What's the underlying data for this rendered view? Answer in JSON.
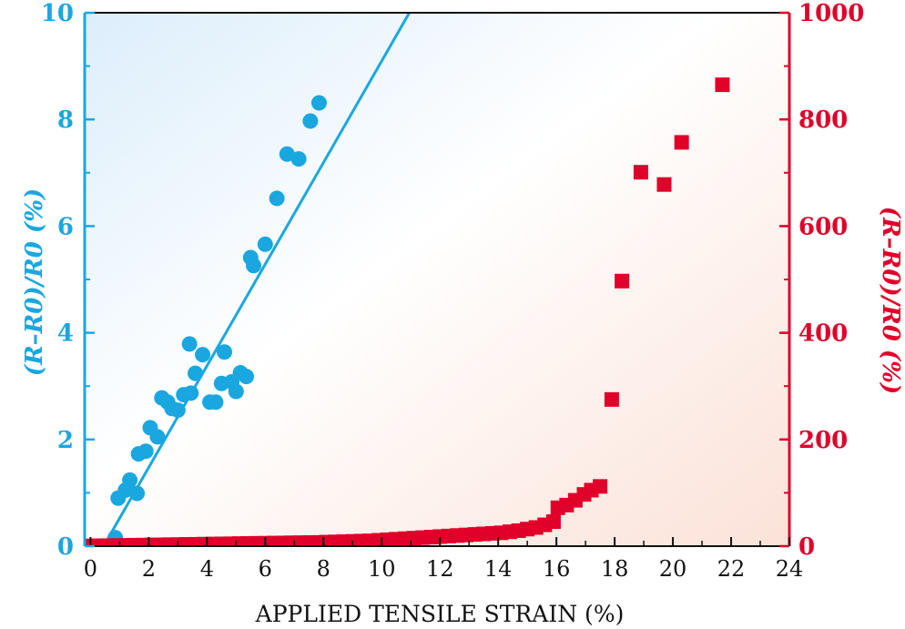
{
  "chart_data": {
    "type": "scatter",
    "title": "",
    "xlabel": "APPLIED TENSILE STRAIN (%)",
    "ylabel_left": "(R–R0)/R0 (%)",
    "ylabel_right": "(R–R0)/R0 (%)",
    "xlim": [
      -0.2,
      24
    ],
    "ylim_left": [
      0,
      10
    ],
    "ylim_right": [
      0,
      1000
    ],
    "x_ticks": [
      "0",
      "2",
      "4",
      "6",
      "8",
      "10",
      "12",
      "14",
      "16",
      "18",
      "20",
      "22",
      "24"
    ],
    "y_left_ticks": [
      "0",
      "2",
      "4",
      "6",
      "8",
      "10"
    ],
    "y_right_ticks": [
      "0",
      "200",
      "400",
      "600",
      "800",
      "1000"
    ],
    "grid": false,
    "colors": {
      "left_series": "#1aa7e0",
      "right_series": "#e0002a",
      "bg_left": "#dceefb",
      "bg_right": "#fbe2d8"
    },
    "series": [
      {
        "axis": "left",
        "marker": "circle",
        "points": [
          [
            0.85,
            0.16
          ],
          [
            0.95,
            0.9
          ],
          [
            1.2,
            1.05
          ],
          [
            1.35,
            1.24
          ],
          [
            1.6,
            0.99
          ],
          [
            1.65,
            1.73
          ],
          [
            1.9,
            1.78
          ],
          [
            2.05,
            2.22
          ],
          [
            2.3,
            2.05
          ],
          [
            2.45,
            2.78
          ],
          [
            2.65,
            2.7
          ],
          [
            2.8,
            2.58
          ],
          [
            3.0,
            2.55
          ],
          [
            3.2,
            2.84
          ],
          [
            3.45,
            2.87
          ],
          [
            3.4,
            3.79
          ],
          [
            3.6,
            3.24
          ],
          [
            3.85,
            3.59
          ],
          [
            4.1,
            2.7
          ],
          [
            4.3,
            2.7
          ],
          [
            4.5,
            3.05
          ],
          [
            4.6,
            3.64
          ],
          [
            4.85,
            3.08
          ],
          [
            5.0,
            2.9
          ],
          [
            5.15,
            3.25
          ],
          [
            5.35,
            3.18
          ],
          [
            5.5,
            5.41
          ],
          [
            5.6,
            5.26
          ],
          [
            6.0,
            5.66
          ],
          [
            6.4,
            6.52
          ],
          [
            6.75,
            7.35
          ],
          [
            7.15,
            7.26
          ],
          [
            7.55,
            7.97
          ],
          [
            7.85,
            8.31
          ]
        ],
        "fit_line": [
          [
            0.45,
            0
          ],
          [
            10.95,
            10
          ]
        ]
      },
      {
        "axis": "right",
        "marker": "square",
        "points": [
          [
            -0.2,
            0
          ],
          [
            0.0,
            0.5
          ],
          [
            0.3,
            0.8
          ],
          [
            0.6,
            1
          ],
          [
            0.9,
            1.3
          ],
          [
            1.2,
            1.5
          ],
          [
            1.5,
            1.8
          ],
          [
            1.8,
            2
          ],
          [
            2.1,
            2.3
          ],
          [
            2.4,
            2.5
          ],
          [
            2.7,
            2.8
          ],
          [
            3.0,
            3
          ],
          [
            3.3,
            3.3
          ],
          [
            3.6,
            3.5
          ],
          [
            3.9,
            3.8
          ],
          [
            4.2,
            4
          ],
          [
            4.5,
            4.3
          ],
          [
            4.8,
            4.5
          ],
          [
            5.1,
            4.8
          ],
          [
            5.4,
            5
          ],
          [
            5.7,
            5.3
          ],
          [
            6.0,
            5.5
          ],
          [
            6.3,
            5.8
          ],
          [
            6.6,
            6
          ],
          [
            6.9,
            6.3
          ],
          [
            7.2,
            6.5
          ],
          [
            7.5,
            6.8
          ],
          [
            7.8,
            7
          ],
          [
            8.1,
            7.5
          ],
          [
            8.4,
            8
          ],
          [
            8.7,
            8.5
          ],
          [
            9.0,
            9
          ],
          [
            9.3,
            9.5
          ],
          [
            9.6,
            10
          ],
          [
            9.9,
            11
          ],
          [
            10.2,
            12
          ],
          [
            10.5,
            13
          ],
          [
            10.8,
            14
          ],
          [
            11.1,
            15
          ],
          [
            11.4,
            16
          ],
          [
            11.7,
            17
          ],
          [
            12.0,
            18
          ],
          [
            12.3,
            19
          ],
          [
            12.6,
            20
          ],
          [
            12.9,
            21
          ],
          [
            13.2,
            22
          ],
          [
            13.5,
            23
          ],
          [
            13.8,
            24
          ],
          [
            14.1,
            25
          ],
          [
            14.4,
            27
          ],
          [
            14.7,
            29
          ],
          [
            15.0,
            32
          ],
          [
            15.3,
            35
          ],
          [
            15.6,
            40
          ],
          [
            15.9,
            46
          ],
          [
            16.05,
            72
          ],
          [
            16.35,
            77
          ],
          [
            16.65,
            86
          ],
          [
            16.95,
            97
          ],
          [
            17.2,
            105
          ],
          [
            17.5,
            112
          ],
          [
            17.9,
            275
          ],
          [
            18.25,
            497
          ],
          [
            18.9,
            701
          ],
          [
            19.7,
            678
          ],
          [
            20.3,
            757
          ],
          [
            21.7,
            865
          ]
        ]
      }
    ]
  }
}
